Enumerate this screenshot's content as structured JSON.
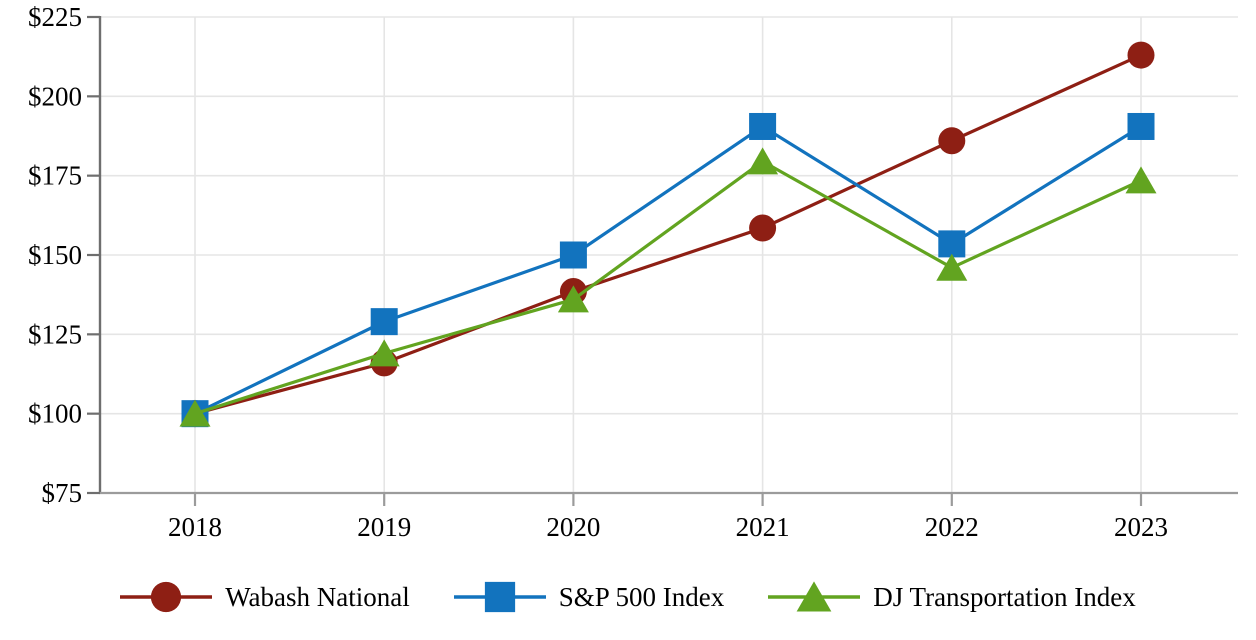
{
  "chart_data": {
    "type": "line",
    "x_categories": [
      "2018",
      "2019",
      "2020",
      "2021",
      "2022",
      "2023"
    ],
    "y_ticks": [
      225,
      200,
      175,
      150,
      125,
      100,
      75
    ],
    "y_tick_labels": [
      "$225",
      "$200",
      "$175",
      "$150",
      "$125",
      "$100",
      "$75"
    ],
    "ylim": [
      75,
      225
    ],
    "grid": true,
    "legend_position": "bottom",
    "series": [
      {
        "name": "Wabash National",
        "marker": "circle",
        "color": "#8E1F14",
        "values": [
          100,
          116,
          138.5,
          158.5,
          186,
          213
        ]
      },
      {
        "name": "S&P 500 Index",
        "marker": "square",
        "color": "#1273BE",
        "values": [
          100,
          129,
          150,
          190.5,
          153.5,
          190.5
        ]
      },
      {
        "name": "DJ Transportation Index",
        "marker": "triangle",
        "color": "#62A420",
        "values": [
          100,
          119,
          136,
          179.5,
          146,
          173.5
        ]
      }
    ],
    "style": {
      "grid_color": "#E5E5E5",
      "y_axis_color": "#6E6E6E",
      "x_axis_color": "#9B9B9B",
      "tick_label_color": "#000000"
    }
  }
}
